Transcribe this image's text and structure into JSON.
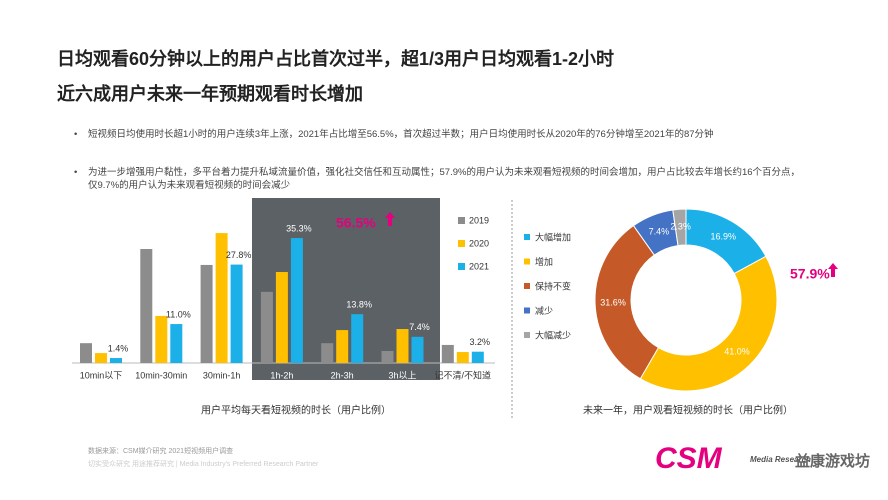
{
  "header": {
    "title_lines": [
      "日均观看60分钟以上的用户占比首次过半，超1/3用户日均观看1-2小时",
      "近六成用户未来一年预期观看时长增加"
    ]
  },
  "bullets": [
    "短视频日均使用时长超1小时的用户连续3年上涨，2021年占比增至56.5%，首次超过半数；用户日均使用时长从2020年的76分钟增至2021年的87分钟",
    "为进一步增强用户黏性，多平台着力提升私域流量价值，强化社交信任和互动属性；57.9%的用户认为未来观看短视频的时间会增加，用户占比较去年增长约16个百分点，仅9.7%的用户认为未来观看短视频的时间会减少"
  ],
  "chart_data": [
    {
      "type": "bar",
      "x_label": "用户平均每天看短视频的时长（用户比例）",
      "annotation": "56.5%",
      "categories": [
        "10min以下",
        "10min-30min",
        "30min-1h",
        "1h-2h",
        "2h-3h",
        "3h以上",
        "记不清/不知道"
      ],
      "series": [
        {
          "name": "2019",
          "color": "#8c8c8c",
          "values": [
            5.6,
            32.2,
            27.7,
            20.1,
            5.6,
            3.4,
            5.1
          ]
        },
        {
          "name": "2020",
          "color": "#ffc000",
          "values": [
            2.8,
            13.3,
            36.7,
            25.7,
            9.3,
            9.6,
            3.1
          ]
        },
        {
          "name": "2021",
          "color": "#1cb0e8",
          "values": [
            1.4,
            11.0,
            27.8,
            35.3,
            13.8,
            7.4,
            3.2
          ],
          "value_labels": [
            "1.4%",
            "11.0%",
            "27.8%",
            "35.3%",
            "13.8%",
            "7.4%",
            "3.2%"
          ]
        }
      ]
    },
    {
      "type": "pie",
      "x_label": "未来一年，用户观看短视频的时长（用户比例）",
      "annotation": "57.9%",
      "categories": [
        "大幅增加",
        "增加",
        "保持不变",
        "减少",
        "大幅减少"
      ],
      "values": [
        16.9,
        41.0,
        31.6,
        7.4,
        2.3
      ],
      "value_labels": [
        "16.9%",
        "41.0%",
        "31.6%",
        "7.4%",
        "2.3%"
      ],
      "colors": [
        "#1cb0e8",
        "#ffc000",
        "#c55a28",
        "#4472c4",
        "#a5a5a5"
      ]
    }
  ],
  "footer": {
    "source": "数据来源：CSM媒介研究 2021短视频用户调查",
    "tagline": "切实受众研究 用途推荐研究 | Media Industry's Preferred Research Partner",
    "logo": "CSM",
    "logo_sub": "Media Research",
    "watermark": "益康游戏坊"
  }
}
